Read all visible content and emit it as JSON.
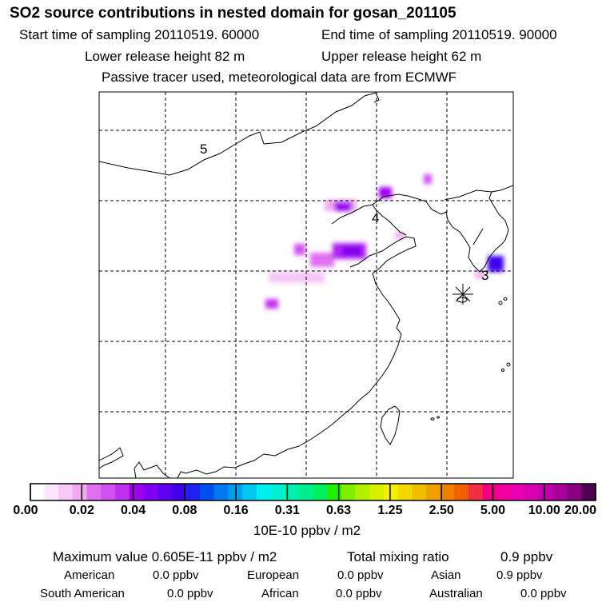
{
  "header": {
    "title": "SO2 source contributions in nested domain for gosan_201105",
    "start_time": "Start time of sampling 20110519. 60000",
    "end_time": "End time of sampling 20110519. 90000",
    "lower_height": "Lower release height   82 m",
    "upper_height": "Upper release height   62 m",
    "note": "Passive tracer used, meteorological data are from ECMWF"
  },
  "map": {
    "region_labels": [
      "5",
      "4",
      "3"
    ],
    "receptor_marker": "asterisk"
  },
  "colorbar": {
    "labels": [
      "0.00",
      "0.02",
      "0.04",
      "0.08",
      "0.16",
      "0.31",
      "0.63",
      "1.25",
      "2.50",
      "5.00",
      "10.00",
      "20.00"
    ],
    "unit": "10E-10 ppbv / m2",
    "colors": [
      "#ffffff",
      "#fbe6fb",
      "#f6c8f6",
      "#f0a8f0",
      "#e070f0",
      "#d050f0",
      "#c030f0",
      "#a000f0",
      "#8000f0",
      "#6000f0",
      "#4000f0",
      "#2020f0",
      "#0050f0",
      "#0078f0",
      "#00a0f0",
      "#00c8f0",
      "#00f0f0",
      "#00f0d0",
      "#00f0b0",
      "#00f090",
      "#00f060",
      "#20f000",
      "#80f000",
      "#b0f000",
      "#d8f000",
      "#f0f000",
      "#f0d800",
      "#f0c000",
      "#f0a000",
      "#f08000",
      "#f06000",
      "#f03040",
      "#f00080",
      "#f000a0",
      "#e800b0",
      "#d800b0",
      "#c000b0",
      "#a80098",
      "#880080",
      "#500050"
    ]
  },
  "summary": {
    "max_value": "Maximum value  0.605E-11 ppbv / m2",
    "total_label": "Total mixing ratio",
    "total_value": "0.9 ppbv",
    "row1": [
      {
        "name": "American",
        "value": "0.0 ppbv"
      },
      {
        "name": "European",
        "value": "0.0 ppbv"
      },
      {
        "name": "Asian",
        "value": "0.9 ppbv"
      }
    ],
    "row2": [
      {
        "name": "South American",
        "value": "0.0 ppbv"
      },
      {
        "name": "African",
        "value": "0.0 ppbv"
      },
      {
        "name": "Australian",
        "value": "0.0 ppbv"
      }
    ]
  }
}
